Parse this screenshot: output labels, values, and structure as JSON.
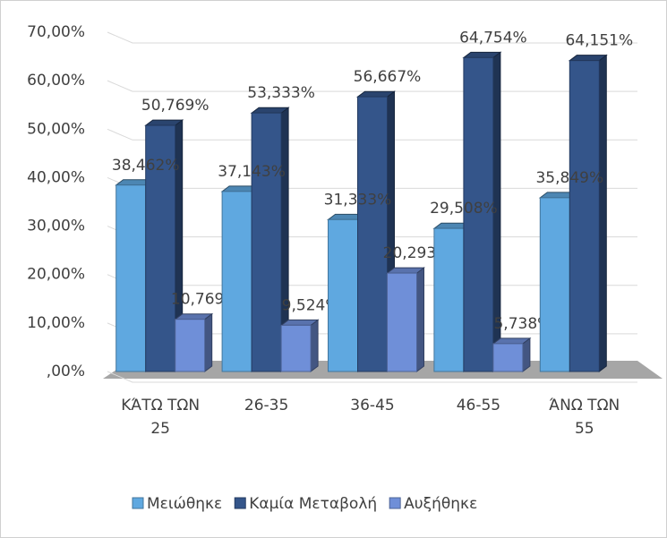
{
  "chart_data": {
    "type": "bar3d",
    "categories": [
      "ΚΆΤΩ ΤΩΝ 25",
      "26-35",
      "36-45",
      "46-55",
      "ΆΝΩ ΤΩΝ 55"
    ],
    "series": [
      {
        "name": "Μειώθηκε",
        "color": "#5fa8e0",
        "values": [
          38.462,
          37.143,
          31.333,
          29.508,
          35.849
        ],
        "value_labels": [
          "38,462%",
          "37,143%",
          "31,333%",
          "29,508%",
          "35,849%"
        ]
      },
      {
        "name": "Καμία Μεταβολή",
        "color": "#34558a",
        "values": [
          50.769,
          53.333,
          56.667,
          64.754,
          64.151
        ],
        "value_labels": [
          "50,769%",
          "53,333%",
          "56,667%",
          "64,754%",
          "64,151%"
        ]
      },
      {
        "name": "Αυξήθηκε",
        "color": "#6f8fd8",
        "values": [
          10.769,
          9.524,
          20.293,
          5.738,
          null
        ],
        "value_labels": [
          "10,769%",
          "9,524%",
          "20,293%",
          "5,738%",
          null
        ]
      }
    ],
    "ylim": [
      0,
      70
    ],
    "yticks": [
      {
        "value": 0,
        "label": ",00%"
      },
      {
        "value": 10,
        "label": "10,00%"
      },
      {
        "value": 20,
        "label": "20,00%"
      },
      {
        "value": 30,
        "label": "30,00%"
      },
      {
        "value": 40,
        "label": "40,00%"
      },
      {
        "value": 50,
        "label": "50,00%"
      },
      {
        "value": 60,
        "label": "60,00%"
      },
      {
        "value": 70,
        "label": "70,00%"
      }
    ],
    "grid": true,
    "legend": "bottom"
  }
}
